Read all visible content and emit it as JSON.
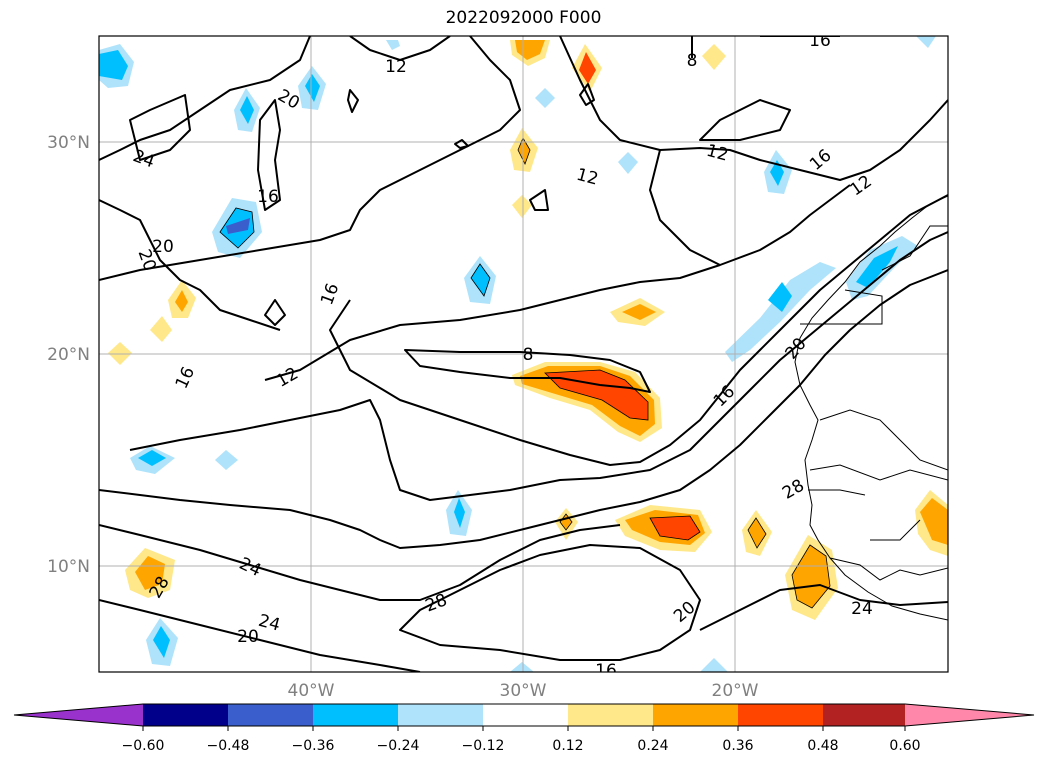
{
  "title": "2022092000 F000",
  "map": {
    "lon_range": [
      -50,
      -10
    ],
    "lat_range": [
      5,
      35
    ],
    "latitude_labels": [
      "30°N",
      "20°N",
      "10°N"
    ],
    "longitude_labels": [
      "40°W",
      "30°W",
      "20°W"
    ],
    "grid": true,
    "contour_labels": [
      "12",
      "8",
      "16",
      "20",
      "24",
      "20",
      "16",
      "16",
      "20",
      "12",
      "12",
      "16",
      "12",
      "8",
      "12",
      "16",
      "20",
      "24",
      "28",
      "24",
      "20",
      "28",
      "24",
      "16",
      "20",
      "28",
      "16"
    ]
  },
  "colorbar": {
    "extend": "both",
    "tick_labels": [
      "−0.60",
      "−0.48",
      "−0.36",
      "−0.24",
      "−0.12",
      "0.12",
      "0.24",
      "0.36",
      "0.48",
      "0.60"
    ],
    "under_color": "#9932cc",
    "over_color": "#ff88aa",
    "colors": [
      "#00008b",
      "#3a5fcd",
      "#00bfff",
      "#aee3fb",
      "#ffffff",
      "#ffe88a",
      "#ffa500",
      "#ff4500",
      "#b22222"
    ]
  }
}
